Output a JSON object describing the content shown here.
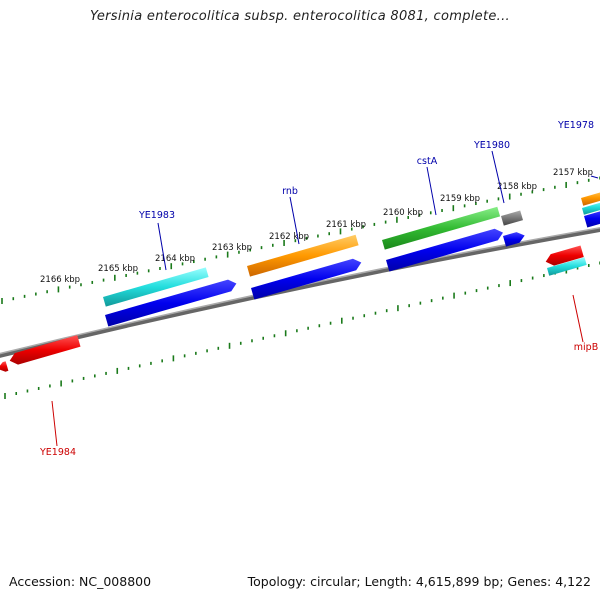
{
  "title": "Yersinia enterocolitica subsp. enterocolitica 8081, complete...",
  "footer": {
    "accession": "Accession: NC_008800",
    "topology": "Topology: circular; Length: 4,615,899 bp; Genes: 4,122"
  },
  "ticks": [
    "2157 kbp",
    "2158 kbp",
    "2159 kbp",
    "2160 kbp",
    "2161 kbp",
    "2162 kbp",
    "2163 kbp",
    "2164 kbp",
    "2165 kbp",
    "2166 kbp"
  ],
  "gene_labels": [
    {
      "name": "YE1978",
      "color": "#0000aa",
      "strand": "forward"
    },
    {
      "name": "YE1980",
      "color": "#0000aa",
      "strand": "forward"
    },
    {
      "name": "cstA",
      "color": "#0000aa",
      "strand": "forward"
    },
    {
      "name": "rnb",
      "color": "#0000aa",
      "strand": "forward"
    },
    {
      "name": "YE1983",
      "color": "#0000aa",
      "strand": "forward"
    },
    {
      "name": "mipB",
      "color": "#cc0000",
      "strand": "reverse"
    },
    {
      "name": "YE1984",
      "color": "#cc0000",
      "strand": "reverse"
    }
  ],
  "colors": {
    "backbone": "#777777",
    "tick": "#1a7a1a",
    "cds_forward": "#0000ee",
    "cds_reverse": "#ee0000",
    "cyan": "#22dddd",
    "orange": "#ff9900",
    "green": "#33bb33",
    "gray": "#777777"
  }
}
